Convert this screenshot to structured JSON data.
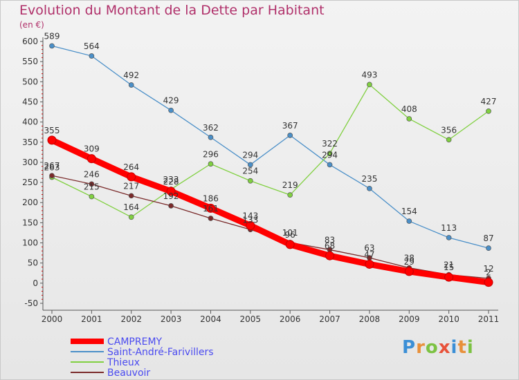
{
  "title": "Evolution du Montant de la Dette par Habitant",
  "unit": "(en €)",
  "logo": {
    "letters": [
      "P",
      "r",
      "o",
      "x",
      "i",
      "t",
      "i"
    ],
    "colors": [
      "#3b8fd6",
      "#e8903a",
      "#7cc242",
      "#e8523a",
      "#3b8fd6",
      "#e8903a",
      "#7cc242"
    ]
  },
  "chart_data": {
    "type": "line",
    "title": "Evolution du Montant de la Dette par Habitant",
    "ylabel": "(en €)",
    "x": [
      "2000",
      "2001",
      "2002",
      "2003",
      "2004",
      "2005",
      "2006",
      "2007",
      "2008",
      "2009",
      "2010",
      "2011"
    ],
    "ylim": [
      -50,
      600
    ],
    "yticks": [
      -50,
      0,
      50,
      100,
      150,
      200,
      250,
      300,
      350,
      400,
      450,
      500,
      550,
      600
    ],
    "grid": false,
    "legend": "bottom-left",
    "series": [
      {
        "name": "CAMPREMY",
        "color": "#ff0000",
        "values": [
          355,
          309,
          264,
          228,
          186,
          143,
          96,
          68,
          47,
          29,
          15,
          2
        ]
      },
      {
        "name": "Saint-André-Farivillers",
        "color": "#4a8fc8",
        "values": [
          589,
          564,
          492,
          429,
          362,
          294,
          367,
          294,
          235,
          154,
          113,
          87
        ]
      },
      {
        "name": "Thieux",
        "color": "#80d040",
        "values": [
          263,
          215,
          164,
          233,
          296,
          254,
          219,
          322,
          493,
          408,
          356,
          427
        ]
      },
      {
        "name": "Beauvoir",
        "color": "#7a2a2a",
        "values": [
          267,
          246,
          217,
          192,
          161,
          133,
          101,
          83,
          63,
          38,
          21,
          12
        ]
      }
    ]
  }
}
